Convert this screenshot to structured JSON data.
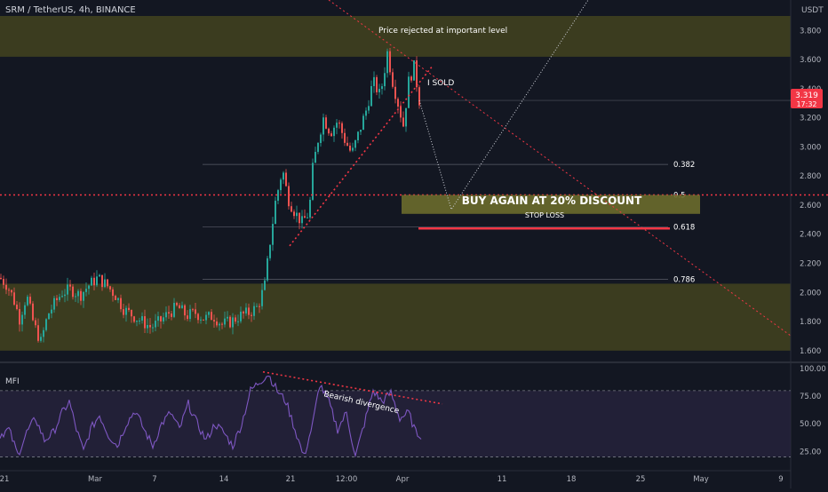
{
  "header": {
    "symbol_text": "SRM / TetherUS, 4h, BINANCE",
    "currency": "USDT"
  },
  "colors": {
    "background": "#131722",
    "panel_background": "#161a25",
    "up": "#26a69a",
    "down": "#ef5350",
    "zone_fill": "#4a4a1f",
    "red_dotted": "#f23645",
    "white_dotted": "#d1d4dc",
    "mfi_line": "#7e57c2",
    "mfi_band": "#2a2540",
    "text": "#d1d4dc",
    "axis_text": "#b2b5be",
    "price_tag": "#f23645"
  },
  "chart_data": [
    {
      "type": "candlestick",
      "title": "SRM / TetherUS, 4h, BINANCE",
      "ylabel": "USDT",
      "ylim": [
        1.55,
        3.9
      ],
      "price_ticks": [
        "3.800",
        "3.600",
        "3.400",
        "3.200",
        "3.000",
        "2.800",
        "2.600",
        "2.400",
        "2.200",
        "2.000",
        "1.800",
        "1.600"
      ],
      "x_ticks": [
        "21",
        "Mar",
        "7",
        "14",
        "21",
        "12:00",
        "Apr",
        "11",
        "18",
        "25",
        "May",
        "9"
      ],
      "last_price": {
        "value": "3.319",
        "countdown": "17:32"
      },
      "candles_from_anchors": [
        {
          "t": 0,
          "p": 2.1
        },
        {
          "t": 8,
          "p": 2.05
        },
        {
          "t": 15,
          "p": 1.96
        },
        {
          "t": 22,
          "p": 1.82
        },
        {
          "t": 30,
          "p": 1.98
        },
        {
          "t": 38,
          "p": 1.78
        },
        {
          "t": 46,
          "p": 1.66
        },
        {
          "t": 54,
          "p": 1.85
        },
        {
          "t": 62,
          "p": 1.93
        },
        {
          "t": 70,
          "p": 2.0
        },
        {
          "t": 80,
          "p": 2.02
        },
        {
          "t": 90,
          "p": 1.98
        },
        {
          "t": 100,
          "p": 2.05
        },
        {
          "t": 110,
          "p": 2.1
        },
        {
          "t": 120,
          "p": 2.05
        },
        {
          "t": 130,
          "p": 1.98
        },
        {
          "t": 140,
          "p": 1.88
        },
        {
          "t": 150,
          "p": 1.84
        },
        {
          "t": 160,
          "p": 1.8
        },
        {
          "t": 170,
          "p": 1.76
        },
        {
          "t": 180,
          "p": 1.8
        },
        {
          "t": 190,
          "p": 1.86
        },
        {
          "t": 200,
          "p": 1.9
        },
        {
          "t": 210,
          "p": 1.84
        },
        {
          "t": 220,
          "p": 1.86
        },
        {
          "t": 230,
          "p": 1.82
        },
        {
          "t": 240,
          "p": 1.84
        },
        {
          "t": 250,
          "p": 1.78
        },
        {
          "t": 260,
          "p": 1.8
        },
        {
          "t": 270,
          "p": 1.84
        },
        {
          "t": 280,
          "p": 1.86
        },
        {
          "t": 290,
          "p": 1.9
        },
        {
          "t": 298,
          "p": 2.05
        },
        {
          "t": 304,
          "p": 2.35
        },
        {
          "t": 310,
          "p": 2.62
        },
        {
          "t": 318,
          "p": 2.85
        },
        {
          "t": 324,
          "p": 2.65
        },
        {
          "t": 332,
          "p": 2.55
        },
        {
          "t": 340,
          "p": 2.48
        },
        {
          "t": 348,
          "p": 2.55
        },
        {
          "t": 352,
          "p": 2.85
        },
        {
          "t": 358,
          "p": 3.05
        },
        {
          "t": 364,
          "p": 3.2
        },
        {
          "t": 372,
          "p": 3.1
        },
        {
          "t": 380,
          "p": 3.18
        },
        {
          "t": 388,
          "p": 3.05
        },
        {
          "t": 396,
          "p": 2.95
        },
        {
          "t": 404,
          "p": 3.1
        },
        {
          "t": 412,
          "p": 3.25
        },
        {
          "t": 420,
          "p": 3.45
        },
        {
          "t": 428,
          "p": 3.35
        },
        {
          "t": 436,
          "p": 3.65
        },
        {
          "t": 442,
          "p": 3.45
        },
        {
          "t": 448,
          "p": 3.3
        },
        {
          "t": 454,
          "p": 3.15
        },
        {
          "t": 460,
          "p": 3.45
        },
        {
          "t": 466,
          "p": 3.55
        },
        {
          "t": 472,
          "p": 3.32
        }
      ],
      "zones": [
        {
          "name": "resistance-zone",
          "from": 3.62,
          "to": 3.9
        },
        {
          "name": "support-zone",
          "from": 1.6,
          "to": 2.06
        }
      ],
      "horizontal_line_price": 2.67,
      "fib_levels": [
        {
          "label": "0.382",
          "value": 2.88
        },
        {
          "label": "0.5",
          "value": 2.67
        },
        {
          "label": "0.618",
          "value": 2.45
        },
        {
          "label": "0.786",
          "value": 2.09
        }
      ],
      "annotations": {
        "top_note": "Price rejected at important level",
        "sold_note": "I SOLD",
        "buy_note": "BUY AGAIN AT 20% DISCOUNT",
        "stop_note": "STOP LOSS"
      }
    },
    {
      "type": "line",
      "title": "MFI",
      "ylim": [
        10,
        100
      ],
      "y_ticks": [
        "100.00",
        "75.00",
        "50.00",
        "25.00"
      ],
      "band": [
        20,
        80
      ],
      "annotation": "Bearish divergence",
      "anchors": [
        {
          "t": 0,
          "v": 40
        },
        {
          "t": 10,
          "v": 45
        },
        {
          "t": 20,
          "v": 22
        },
        {
          "t": 30,
          "v": 42
        },
        {
          "t": 40,
          "v": 55
        },
        {
          "t": 50,
          "v": 35
        },
        {
          "t": 60,
          "v": 42
        },
        {
          "t": 70,
          "v": 60
        },
        {
          "t": 78,
          "v": 70
        },
        {
          "t": 86,
          "v": 45
        },
        {
          "t": 94,
          "v": 25
        },
        {
          "t": 102,
          "v": 45
        },
        {
          "t": 112,
          "v": 58
        },
        {
          "t": 122,
          "v": 40
        },
        {
          "t": 132,
          "v": 30
        },
        {
          "t": 142,
          "v": 50
        },
        {
          "t": 152,
          "v": 62
        },
        {
          "t": 162,
          "v": 45
        },
        {
          "t": 172,
          "v": 30
        },
        {
          "t": 182,
          "v": 50
        },
        {
          "t": 192,
          "v": 60
        },
        {
          "t": 202,
          "v": 45
        },
        {
          "t": 212,
          "v": 68
        },
        {
          "t": 222,
          "v": 50
        },
        {
          "t": 232,
          "v": 35
        },
        {
          "t": 242,
          "v": 50
        },
        {
          "t": 252,
          "v": 42
        },
        {
          "t": 262,
          "v": 30
        },
        {
          "t": 272,
          "v": 50
        },
        {
          "t": 282,
          "v": 80
        },
        {
          "t": 292,
          "v": 88
        },
        {
          "t": 302,
          "v": 95
        },
        {
          "t": 312,
          "v": 80
        },
        {
          "t": 322,
          "v": 70
        },
        {
          "t": 332,
          "v": 45
        },
        {
          "t": 342,
          "v": 20
        },
        {
          "t": 352,
          "v": 50
        },
        {
          "t": 360,
          "v": 86
        },
        {
          "t": 370,
          "v": 70
        },
        {
          "t": 380,
          "v": 45
        },
        {
          "t": 390,
          "v": 60
        },
        {
          "t": 400,
          "v": 20
        },
        {
          "t": 410,
          "v": 50
        },
        {
          "t": 420,
          "v": 80
        },
        {
          "t": 430,
          "v": 70
        },
        {
          "t": 440,
          "v": 78
        },
        {
          "t": 450,
          "v": 55
        },
        {
          "t": 460,
          "v": 60
        },
        {
          "t": 468,
          "v": 42
        },
        {
          "t": 474,
          "v": 40
        }
      ]
    }
  ]
}
